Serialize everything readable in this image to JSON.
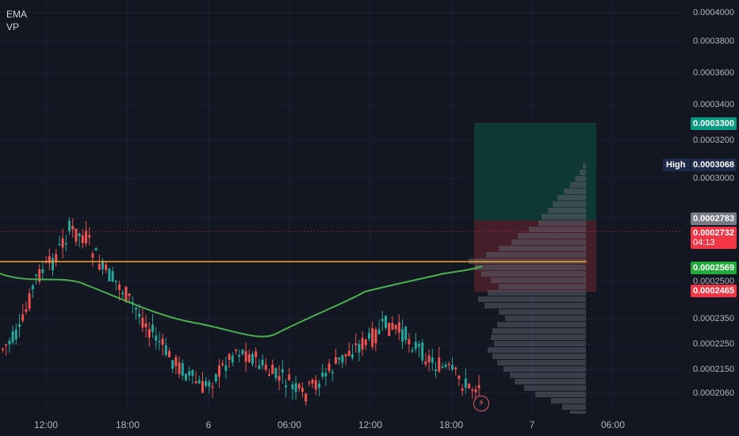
{
  "indicators": {
    "ema": "EMA",
    "vp": "VP"
  },
  "price_axis": {
    "ticks": [
      "0.0004000",
      "0.0003800",
      "0.0003600",
      "0.0003400",
      "0.0003200",
      "0.0003000",
      "0.0002500",
      "0.0002350",
      "0.0002250",
      "0.0002150",
      "0.0002060"
    ],
    "target_price": "0.0003300",
    "high_label": "High",
    "high_price": "0.0003068",
    "entry_price": "0.0002783",
    "last_price": "0.0002732",
    "countdown": "04:13",
    "ema_price": "0.0002569",
    "stop_price": "0.0002465"
  },
  "time_axis": {
    "labels": [
      "12:00",
      "18:00",
      "6",
      "06:00",
      "12:00",
      "18:00",
      "7",
      "06:00"
    ]
  },
  "colors": {
    "background": "#131722",
    "up_candle": "#26a69a",
    "down_candle": "#ef5350",
    "ema_line": "#4caf50",
    "poc_line": "#f5a623",
    "target_zone": "#0f3d37",
    "stop_zone": "#4a1f2a",
    "volume_profile": "#5d606b"
  },
  "icons": {
    "flash": "lightning-icon"
  }
}
